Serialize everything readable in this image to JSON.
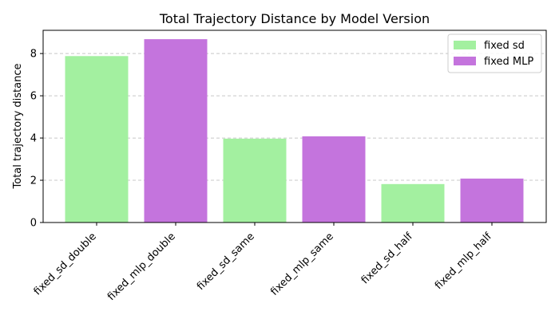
{
  "chart_data": {
    "type": "bar",
    "title": "Total Trajectory Distance by Model Version",
    "xlabel": "",
    "ylabel": "Total trajectory distance",
    "categories": [
      "fixed_sd_double",
      "fixed_mlp_double",
      "fixed_sd_same",
      "fixed_mlp_same",
      "fixed_sd_half",
      "fixed_mlp_half"
    ],
    "values": [
      7.88,
      8.68,
      3.97,
      4.08,
      1.82,
      2.08
    ],
    "bar_series": [
      "fixed sd",
      "fixed MLP",
      "fixed sd",
      "fixed MLP",
      "fixed sd",
      "fixed MLP"
    ],
    "series": [
      {
        "name": "fixed sd",
        "color": "#a3f0a0"
      },
      {
        "name": "fixed MLP",
        "color": "#c474dd"
      }
    ],
    "ylim": [
      0,
      9.1
    ],
    "yticks": [
      0,
      2,
      4,
      6,
      8
    ],
    "grid": "y-dashed",
    "legend_position": "top-right"
  }
}
